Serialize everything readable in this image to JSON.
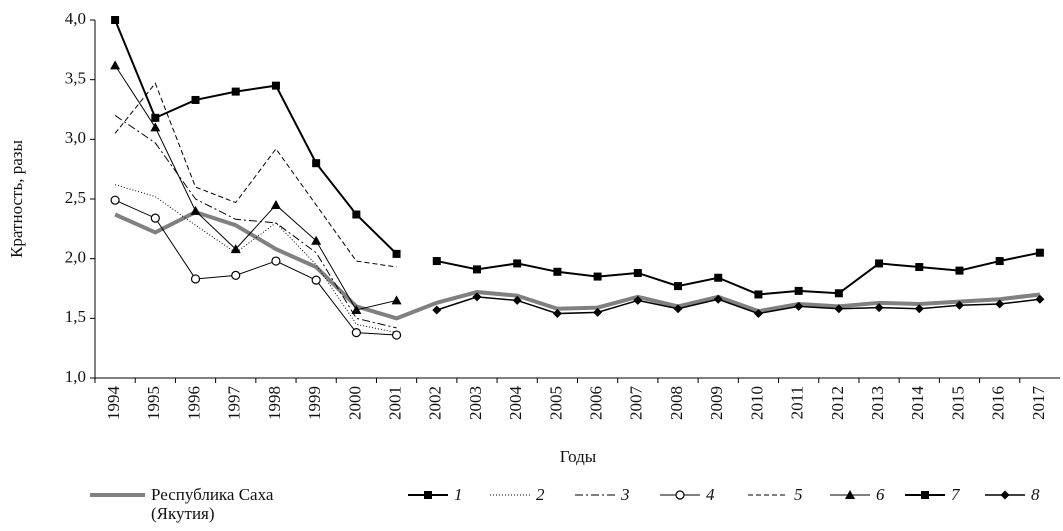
{
  "chart_data": {
    "type": "line",
    "y_label": "Кратность, разы",
    "x_label": "Годы",
    "categories": [
      "1994",
      "1995",
      "1996",
      "1997",
      "1998",
      "1999",
      "2000",
      "2001",
      "2002",
      "2003",
      "2004",
      "2005",
      "2006",
      "2007",
      "2008",
      "2009",
      "2010",
      "2011",
      "2012",
      "2013",
      "2014",
      "2015",
      "2016",
      "2017"
    ],
    "ylim": [
      1.0,
      4.0
    ],
    "yticks": [
      {
        "value": 1.0,
        "label": "1,0"
      },
      {
        "value": 1.5,
        "label": "1,5"
      },
      {
        "value": 2.0,
        "label": "2,0"
      },
      {
        "value": 2.5,
        "label": "2,5"
      },
      {
        "value": 3.0,
        "label": "3,0"
      },
      {
        "value": 3.5,
        "label": "3,5"
      },
      {
        "value": 4.0,
        "label": "4,0"
      }
    ],
    "series": [
      {
        "name": "Республика Саха (Якутия)",
        "color": "#808080",
        "width": 4,
        "dash": "none",
        "marker": "none",
        "values": [
          2.37,
          2.22,
          2.39,
          2.28,
          2.08,
          1.93,
          1.6,
          1.5,
          1.63,
          1.72,
          1.69,
          1.58,
          1.59,
          1.68,
          1.6,
          1.68,
          1.56,
          1.62,
          1.6,
          1.63,
          1.62,
          1.64,
          1.66,
          1.7
        ]
      },
      {
        "name": "1",
        "color": "#000000",
        "width": 2,
        "dash": "none",
        "marker": "square",
        "values": [
          4.0,
          3.18,
          3.33,
          3.4,
          3.45,
          2.8,
          2.37,
          2.04,
          null,
          null,
          null,
          null,
          null,
          null,
          null,
          null,
          null,
          null,
          null,
          null,
          null,
          null,
          null,
          null
        ]
      },
      {
        "name": "2",
        "color": "#000000",
        "width": 1,
        "dash": "1 2",
        "marker": "none",
        "values": [
          2.62,
          2.52,
          2.28,
          2.05,
          2.3,
          1.95,
          1.45,
          1.38,
          null,
          null,
          null,
          null,
          null,
          null,
          null,
          null,
          null,
          null,
          null,
          null,
          null,
          null,
          null,
          null
        ]
      },
      {
        "name": "3",
        "color": "#000000",
        "width": 1,
        "dash": "8 3 2 3",
        "marker": "none",
        "values": [
          3.2,
          2.97,
          2.5,
          2.33,
          2.3,
          2.05,
          1.5,
          1.42,
          null,
          null,
          null,
          null,
          null,
          null,
          null,
          null,
          null,
          null,
          null,
          null,
          null,
          null,
          null,
          null
        ]
      },
      {
        "name": "4",
        "color": "#000000",
        "width": 1,
        "dash": "none",
        "marker": "circle",
        "values": [
          2.49,
          2.34,
          1.83,
          1.86,
          1.98,
          1.82,
          1.38,
          1.36,
          null,
          null,
          null,
          null,
          null,
          null,
          null,
          null,
          null,
          null,
          null,
          null,
          null,
          null,
          null,
          null
        ]
      },
      {
        "name": "5",
        "color": "#000000",
        "width": 1,
        "dash": "5 3",
        "marker": "none",
        "values": [
          3.05,
          3.47,
          2.6,
          2.47,
          2.92,
          2.45,
          1.98,
          1.93,
          null,
          null,
          null,
          null,
          null,
          null,
          null,
          null,
          null,
          null,
          null,
          null,
          null,
          null,
          null,
          null
        ]
      },
      {
        "name": "6",
        "color": "#000000",
        "width": 1,
        "dash": "none",
        "marker": "triangle",
        "values": [
          3.62,
          3.1,
          2.4,
          2.08,
          2.45,
          2.15,
          1.57,
          1.65,
          null,
          null,
          null,
          null,
          null,
          null,
          null,
          null,
          null,
          null,
          null,
          null,
          null,
          null,
          null,
          null
        ]
      },
      {
        "name": "7",
        "color": "#000000",
        "width": 2,
        "dash": "none",
        "marker": "square",
        "values": [
          null,
          null,
          null,
          null,
          null,
          null,
          null,
          null,
          1.98,
          1.91,
          1.96,
          1.89,
          1.85,
          1.88,
          1.77,
          1.84,
          1.7,
          1.73,
          1.71,
          1.96,
          1.93,
          1.9,
          1.98,
          2.05
        ]
      },
      {
        "name": "8",
        "color": "#000000",
        "width": 1.5,
        "dash": "none",
        "marker": "diamond",
        "values": [
          null,
          null,
          null,
          null,
          null,
          null,
          null,
          null,
          1.57,
          1.68,
          1.65,
          1.54,
          1.55,
          1.65,
          1.58,
          1.66,
          1.54,
          1.6,
          1.58,
          1.59,
          1.58,
          1.61,
          1.62,
          1.66
        ]
      }
    ]
  }
}
